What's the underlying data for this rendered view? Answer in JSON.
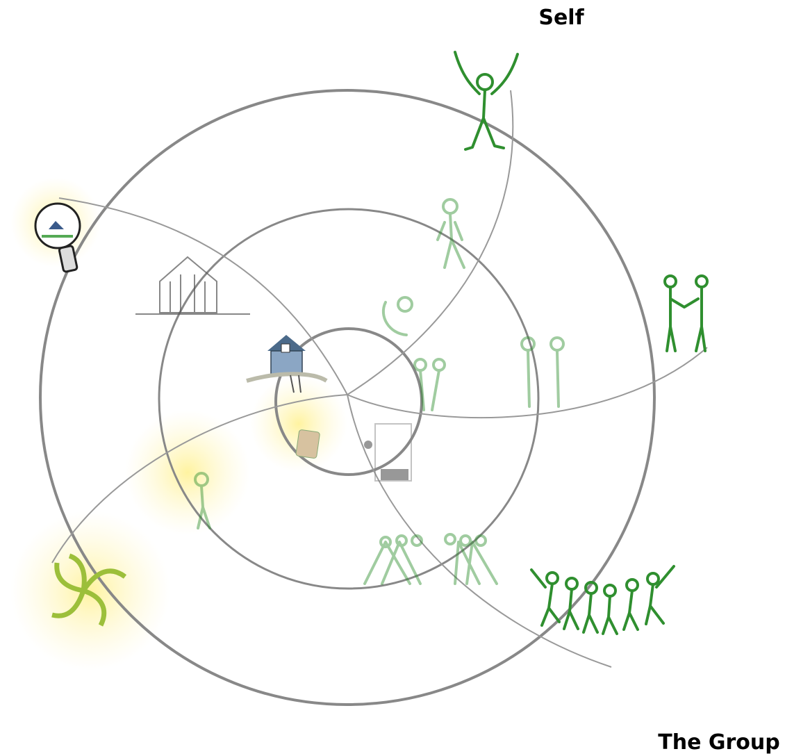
{
  "labels": {
    "self": "Self",
    "group": "The Group"
  }
}
